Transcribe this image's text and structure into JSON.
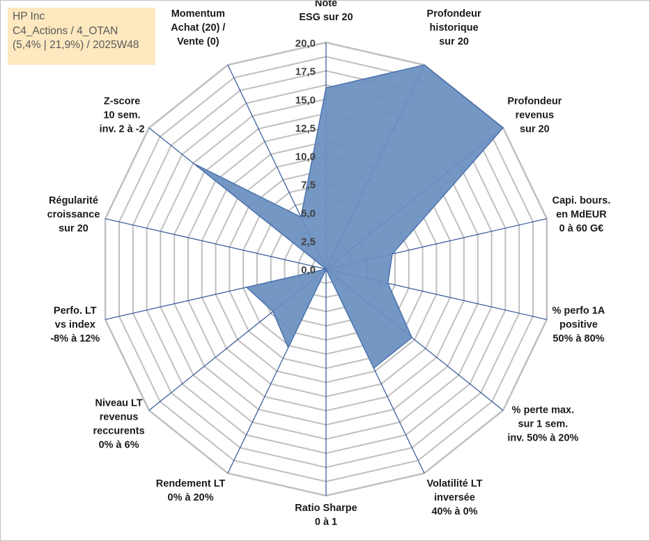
{
  "info": {
    "company": "HP Inc",
    "category": "C4_Actions / 4_OTAN",
    "stats": "(5,4% | 21,9%) / 2025W48"
  },
  "colors": {
    "fill": "#6b8fbf",
    "stroke": "#4a72ad",
    "grid": "#bfbfbf",
    "spoke": "#2f5597"
  },
  "chart_data": {
    "type": "radar",
    "rlim": [
      0,
      20
    ],
    "grid": true,
    "ticks": [
      "0,0",
      "2,5",
      "5,0",
      "7,5",
      "10,0",
      "12,5",
      "15,0",
      "17,5",
      "20,0"
    ],
    "axes": [
      {
        "lines": [
          "Note",
          "ESG sur 20"
        ]
      },
      {
        "lines": [
          "Profondeur",
          "historique",
          "sur 20"
        ]
      },
      {
        "lines": [
          "Profondeur",
          "revenus",
          "sur 20"
        ]
      },
      {
        "lines": [
          "Capi. bours.",
          "en MdEUR",
          "0 à 60 G€"
        ]
      },
      {
        "lines": [
          "% perfo 1A",
          "positive",
          "50% à 80%"
        ]
      },
      {
        "lines": [
          "% perte max.",
          "sur 1 sem.",
          "inv. 50% à 20%"
        ]
      },
      {
        "lines": [
          "Volatilité LT",
          "inversée",
          "40% à 0%"
        ]
      },
      {
        "lines": [
          "Ratio Sharpe",
          "0 à 1"
        ]
      },
      {
        "lines": [
          "Rendement LT",
          "0% à 20%"
        ]
      },
      {
        "lines": [
          "Niveau LT",
          "revenus",
          "reccurents",
          "0% à 6%"
        ]
      },
      {
        "lines": [
          "Perfo. LT",
          "vs index",
          "-8% à 12%"
        ]
      },
      {
        "lines": [
          "Régularité",
          "croissance",
          "sur 20"
        ]
      },
      {
        "lines": [
          "Z-score",
          "10 sem.",
          "inv. 2 à -2"
        ]
      },
      {
        "lines": [
          "Momentum",
          "Achat (20) /",
          "Vente (0)"
        ]
      }
    ],
    "series": [
      {
        "values": [
          16.0,
          20.0,
          20.0,
          6.0,
          5.6,
          9.7,
          9.7,
          0.0,
          7.7,
          6.0,
          7.2,
          0.0,
          14.9,
          5.1
        ]
      }
    ]
  }
}
